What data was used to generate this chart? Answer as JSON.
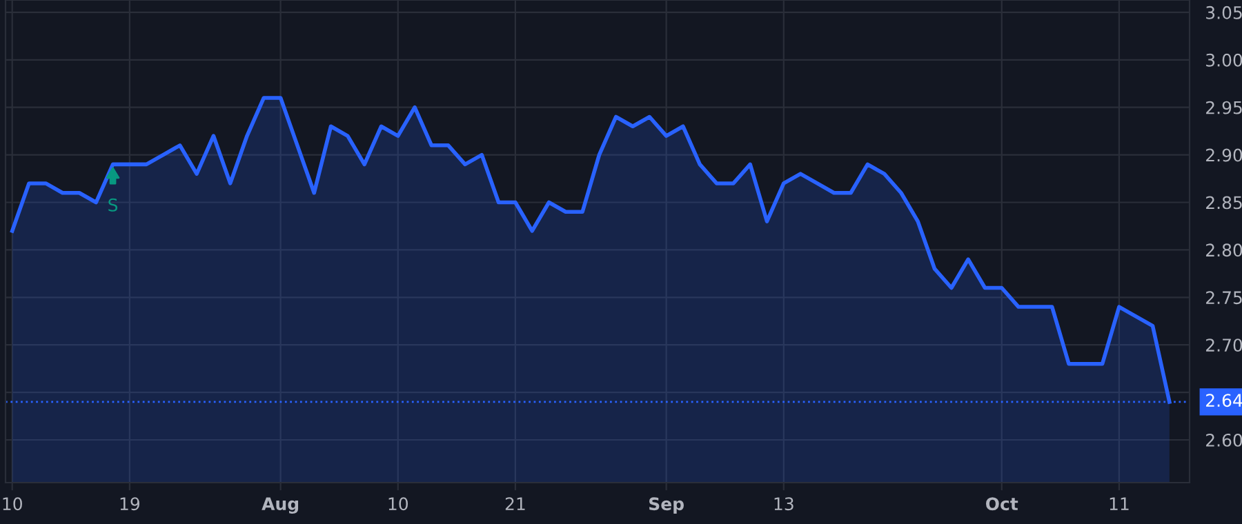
{
  "chart_data": {
    "type": "area",
    "categories": [
      "10",
      null,
      null,
      null,
      null,
      null,
      null,
      "19",
      null,
      null,
      null,
      null,
      null,
      null,
      null,
      null,
      "Aug",
      null,
      null,
      null,
      null,
      null,
      null,
      "10",
      null,
      null,
      null,
      null,
      null,
      null,
      "21",
      null,
      null,
      null,
      null,
      null,
      null,
      null,
      null,
      "Sep",
      null,
      null,
      null,
      null,
      null,
      null,
      "13",
      null,
      null,
      null,
      null,
      null,
      null,
      null,
      null,
      null,
      null,
      null,
      null,
      "Oct",
      null,
      null,
      null,
      null,
      null,
      null,
      "11",
      null,
      null,
      null
    ],
    "series": [
      {
        "color": "#2962ff",
        "values": [
          2.82,
          2.87,
          2.87,
          2.86,
          2.86,
          2.85,
          2.89,
          2.89,
          2.89,
          2.9,
          2.91,
          2.88,
          2.92,
          2.87,
          2.92,
          2.96,
          2.96,
          2.91,
          2.86,
          2.93,
          2.92,
          2.89,
          2.93,
          2.92,
          2.95,
          2.91,
          2.91,
          2.89,
          2.9,
          2.85,
          2.85,
          2.82,
          2.85,
          2.84,
          2.84,
          2.9,
          2.94,
          2.93,
          2.94,
          2.92,
          2.93,
          2.89,
          2.87,
          2.87,
          2.89,
          2.83,
          2.87,
          2.88,
          2.87,
          2.86,
          2.86,
          2.89,
          2.88,
          2.86,
          2.83,
          2.78,
          2.76,
          2.79,
          2.76,
          2.76,
          2.74,
          2.74,
          2.74,
          2.68,
          2.68,
          2.68,
          2.74,
          2.73,
          2.72,
          2.64
        ]
      }
    ],
    "ylim": [
      2.555,
      3.063
    ],
    "yticks": [
      {
        "value": 2.6,
        "label": "2.60"
      },
      {
        "value": 2.65,
        "label": null
      },
      {
        "value": 2.7,
        "label": "2.70"
      },
      2.75,
      {
        "value": 2.8,
        "label": "2.80"
      },
      2.85,
      {
        "value": 2.9,
        "label": "2.90"
      },
      2.95,
      {
        "value": 3.0,
        "label": "3.00"
      },
      3.05
    ],
    "annotations": [
      {
        "text": "S",
        "x": "19",
        "y": 2.89
      }
    ],
    "ref_lines": [
      {
        "axis": "y",
        "value": 2.64,
        "label": "2.64",
        "color": "#2962ff",
        "line_style": "dotted"
      }
    ],
    "grid": true,
    "line_style": "solid",
    "marker": "none"
  }
}
